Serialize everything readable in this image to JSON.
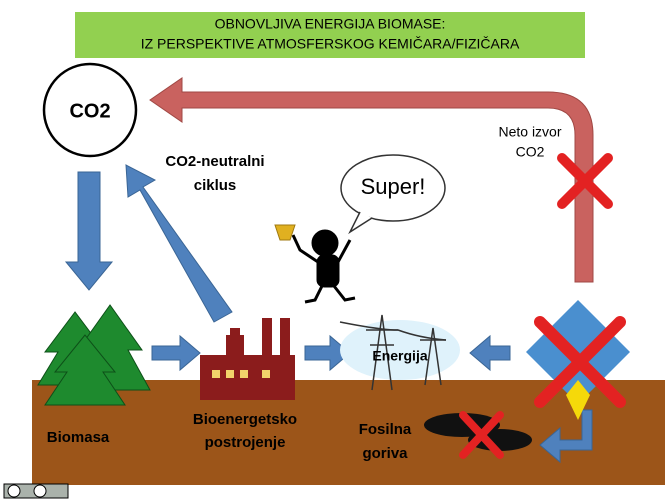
{
  "header": {
    "lines": [
      "OBNOVLJIVA ENERGIJA BIOMASE:",
      "IZ PERSPEKTIVE ATMOSFERSKOG KEMIČARA/FIZIČARA"
    ]
  },
  "labels": {
    "co2": "CO2",
    "cycle": [
      "CO2-neutralni",
      "ciklus"
    ],
    "net_source": [
      "Neto izvor",
      "CO2"
    ],
    "speech": "Super!",
    "energy": "Energija",
    "biomass": "Biomasa",
    "plant": [
      "Bioenergetsko",
      "postrojenje"
    ],
    "fossil": [
      "Fosilna",
      "goriva"
    ]
  }
}
